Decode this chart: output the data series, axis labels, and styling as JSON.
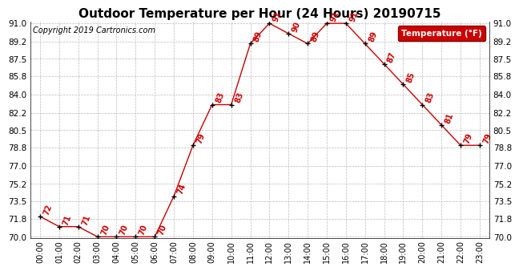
{
  "title": "Outdoor Temperature per Hour (24 Hours) 20190715",
  "copyright": "Copyright 2019 Cartronics.com",
  "ylabel": "Temperature (°F)",
  "hours": [
    "00:00",
    "01:00",
    "02:00",
    "03:00",
    "04:00",
    "05:00",
    "06:00",
    "07:00",
    "08:00",
    "09:00",
    "10:00",
    "11:00",
    "12:00",
    "13:00",
    "14:00",
    "15:00",
    "16:00",
    "17:00",
    "18:00",
    "19:00",
    "20:00",
    "21:00",
    "22:00",
    "23:00"
  ],
  "temperatures": [
    72,
    71,
    71,
    70,
    70,
    70,
    70,
    74,
    79,
    83,
    83,
    89,
    91,
    90,
    89,
    91,
    91,
    89,
    87,
    85,
    83,
    81,
    79,
    79
  ],
  "ylim_min": 70.0,
  "ylim_max": 91.0,
  "line_color": "#cc0000",
  "marker_color": "#000000",
  "legend_bg": "#cc0000",
  "legend_text_color": "#ffffff",
  "background_color": "#ffffff",
  "grid_color": "#bbbbbb",
  "title_fontsize": 11,
  "copyright_fontsize": 7,
  "annotation_fontsize": 7,
  "yticks": [
    70.0,
    71.8,
    73.5,
    75.2,
    77.0,
    78.8,
    80.5,
    82.2,
    84.0,
    85.8,
    87.5,
    89.2,
    91.0
  ]
}
